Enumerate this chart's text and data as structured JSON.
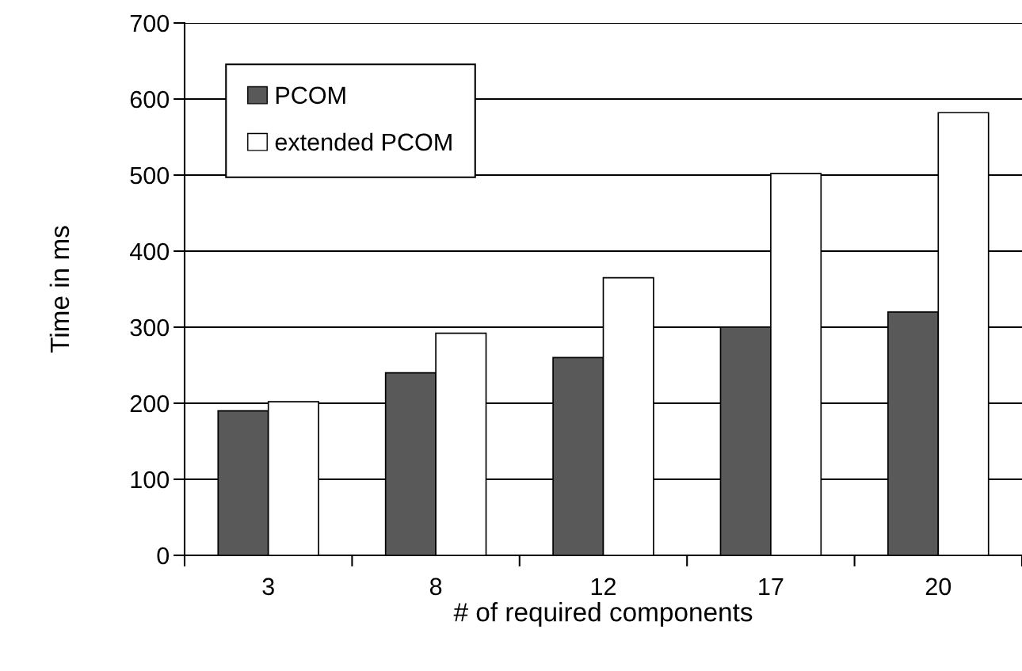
{
  "chart_data": {
    "type": "bar",
    "xlabel": "# of required components",
    "ylabel": "Time in ms",
    "categories": [
      "3",
      "8",
      "12",
      "17",
      "20"
    ],
    "series": [
      {
        "name": "PCOM",
        "color": "#595959",
        "values": [
          190,
          240,
          260,
          300,
          320
        ]
      },
      {
        "name": "extended PCOM",
        "color": "#ffffff",
        "values": [
          202,
          292,
          365,
          502,
          582
        ]
      }
    ],
    "ylim": [
      0,
      700
    ],
    "yticks": [
      0,
      100,
      200,
      300,
      400,
      500,
      600,
      700
    ],
    "grid": "y",
    "legend": "top left"
  }
}
